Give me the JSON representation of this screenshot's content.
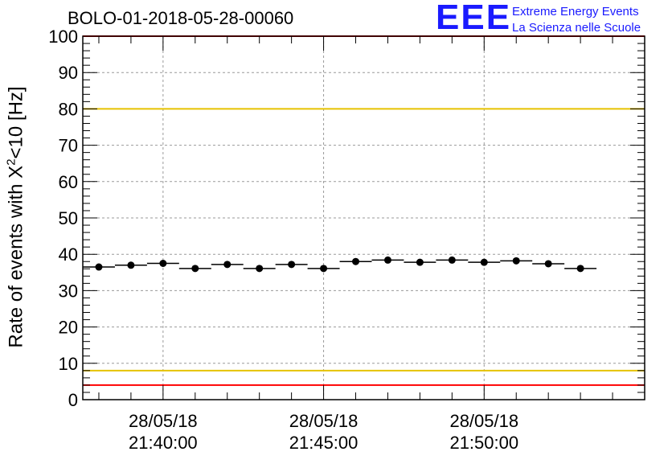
{
  "header": {
    "run_title": "BOLO-01-2018-05-28-00060",
    "logo_mark": "EEE",
    "logo_line1": "Extreme Energy Events",
    "logo_line2": "La Scienza nelle Scuole"
  },
  "chart_data": {
    "type": "scatter",
    "title": "BOLO-01-2018-05-28-00060",
    "xlabel": "",
    "ylabel_prefix": "Rate of events with X",
    "ylabel_superscript": "2",
    "ylabel_suffix": "<10 [Hz]",
    "ylim": [
      0,
      100
    ],
    "yticks": [
      0,
      10,
      20,
      30,
      40,
      50,
      60,
      70,
      80,
      90,
      100
    ],
    "xlim": [
      "21:37:30",
      "21:55:00"
    ],
    "xticks": [
      {
        "t": "21:40:00",
        "date": "28/05/18",
        "time": "21:40:00"
      },
      {
        "t": "21:45:00",
        "date": "28/05/18",
        "time": "21:45:00"
      },
      {
        "t": "21:50:00",
        "date": "28/05/18",
        "time": "21:50:00"
      }
    ],
    "x_minor_step_seconds": 60,
    "y_minor_step": 2,
    "bin_width_seconds": 60,
    "grid": true,
    "series": [
      {
        "marker": "circle",
        "color": "#000000",
        "points": [
          {
            "t": "21:38:00",
            "y": 36.5
          },
          {
            "t": "21:39:00",
            "y": 37.0
          },
          {
            "t": "21:40:00",
            "y": 37.5
          },
          {
            "t": "21:41:00",
            "y": 36.1
          },
          {
            "t": "21:42:00",
            "y": 37.2
          },
          {
            "t": "21:43:00",
            "y": 36.1
          },
          {
            "t": "21:44:00",
            "y": 37.2
          },
          {
            "t": "21:45:00",
            "y": 36.1
          },
          {
            "t": "21:46:00",
            "y": 38.0
          },
          {
            "t": "21:47:00",
            "y": 38.4
          },
          {
            "t": "21:48:00",
            "y": 37.8
          },
          {
            "t": "21:49:00",
            "y": 38.4
          },
          {
            "t": "21:50:00",
            "y": 37.8
          },
          {
            "t": "21:51:00",
            "y": 38.2
          },
          {
            "t": "21:52:00",
            "y": 37.4
          },
          {
            "t": "21:53:00",
            "y": 36.1
          }
        ]
      }
    ],
    "reference_lines": [
      {
        "y": 100,
        "color": "#ff0000"
      },
      {
        "y": 80,
        "color": "#e6c200"
      },
      {
        "y": 8,
        "color": "#e6c200"
      },
      {
        "y": 4,
        "color": "#ff0000"
      }
    ]
  },
  "colors": {
    "logo_blue": "#1a1aff",
    "grid": "#9a9a9a",
    "marker": "#000000"
  }
}
